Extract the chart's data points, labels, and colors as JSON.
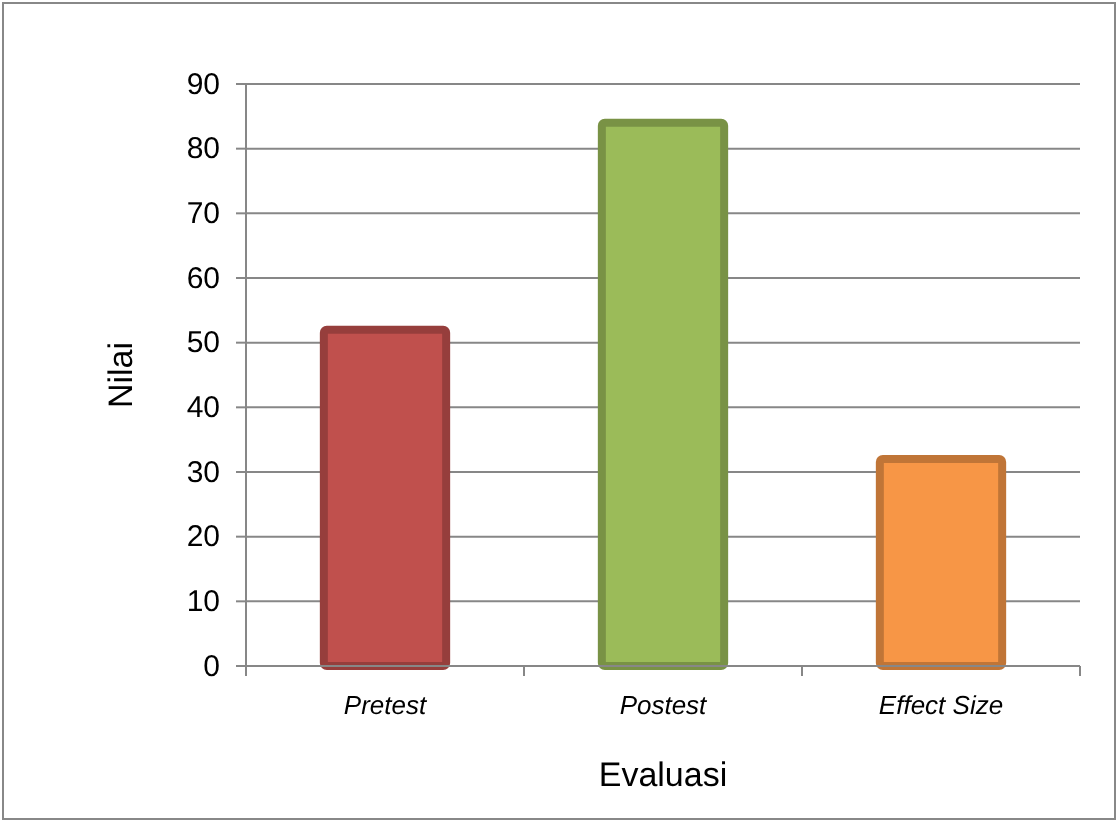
{
  "chart_data": {
    "type": "bar",
    "xlabel": "Evaluasi",
    "ylabel": "Nilai",
    "categories": [
      "Pretest",
      "Postest",
      "Effect Size"
    ],
    "values": [
      52,
      84,
      32
    ],
    "colors": [
      "#c0504d",
      "#9bbb59",
      "#f79646"
    ],
    "ylim": [
      0,
      90
    ],
    "yticks": [
      0,
      10,
      20,
      30,
      40,
      50,
      60,
      70,
      80,
      90
    ],
    "grid": "y"
  }
}
